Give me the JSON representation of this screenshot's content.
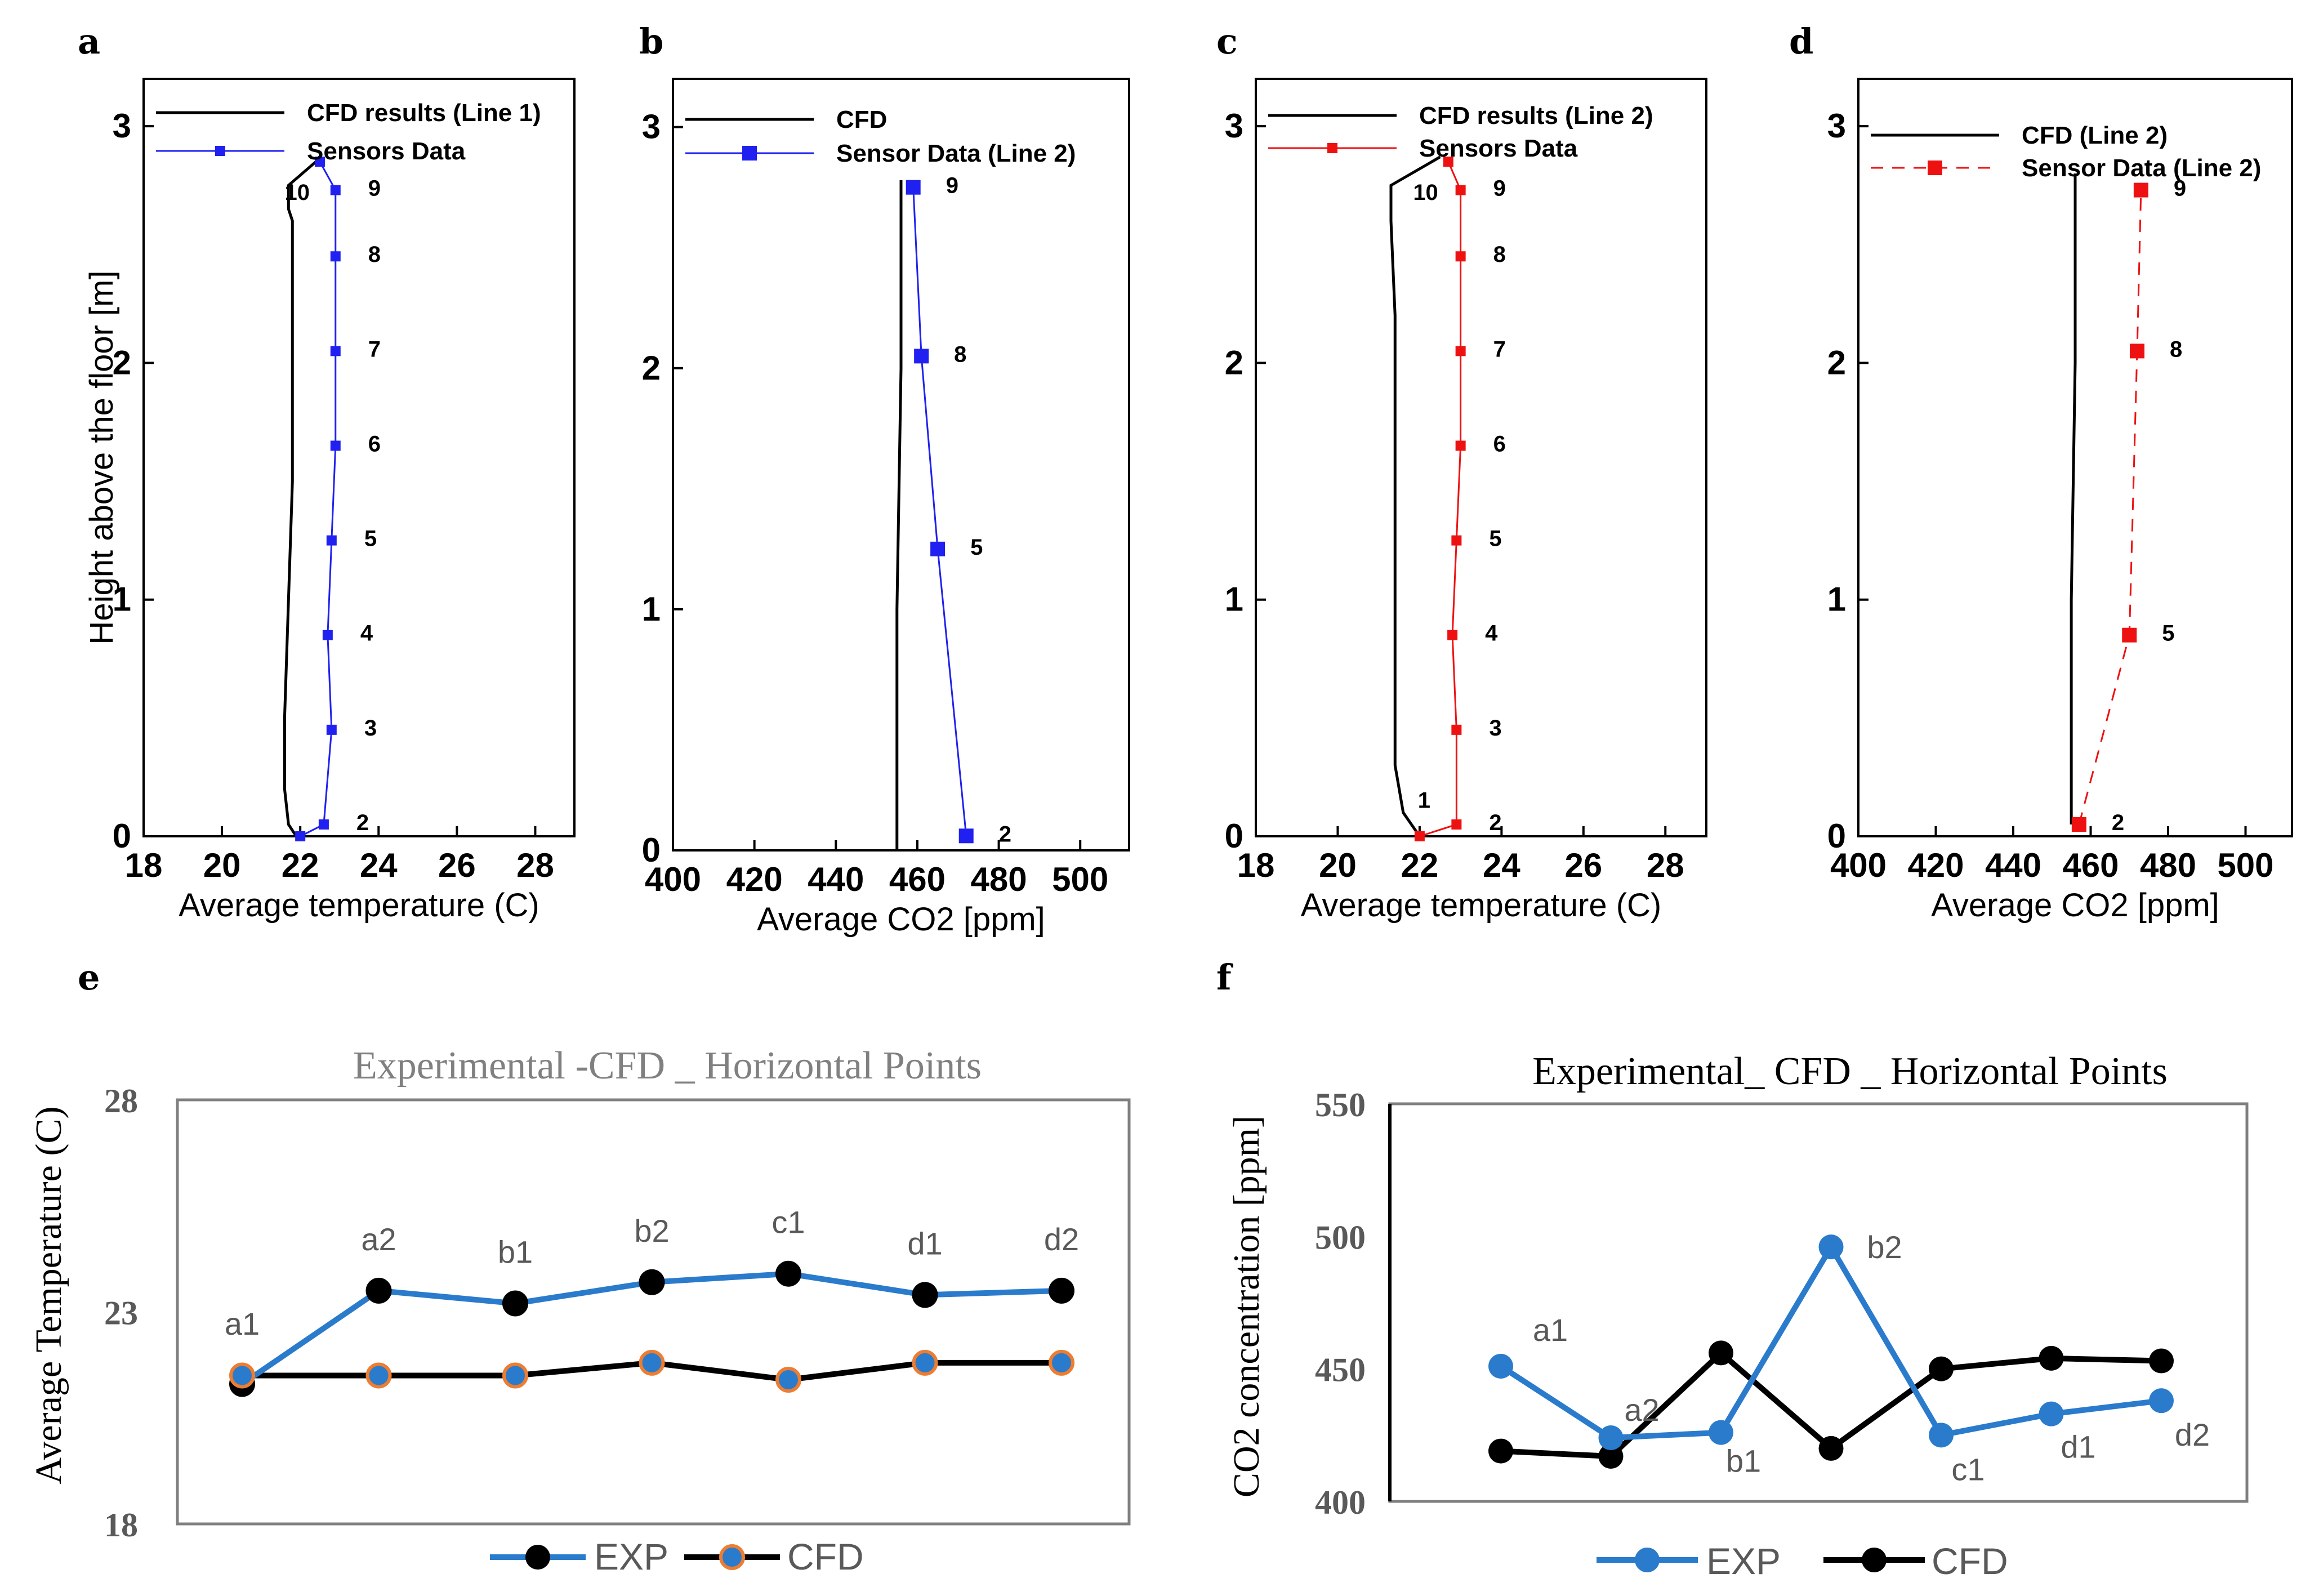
{
  "panels": {
    "a": {
      "letter": "a",
      "xlabel": "Average temperature (C)",
      "ylabel": "Height above the floor [m]",
      "xticks": [
        "18",
        "20",
        "22",
        "24",
        "26",
        "28"
      ],
      "yticks": [
        "0",
        "1",
        "2",
        "3"
      ],
      "legend": [
        "CFD results (Line 1)",
        "Sensors Data"
      ]
    },
    "b": {
      "letter": "b",
      "xlabel": "Average CO2 [ppm]",
      "xticks": [
        "400",
        "420",
        "440",
        "460",
        "480",
        "500"
      ],
      "yticks": [
        "0",
        "1",
        "2",
        "3"
      ],
      "legend": [
        "CFD",
        "Sensor Data (Line 2)"
      ]
    },
    "c": {
      "letter": "c",
      "xlabel": "Average temperature (C)",
      "xticks": [
        "18",
        "20",
        "22",
        "24",
        "26",
        "28"
      ],
      "yticks": [
        "0",
        "1",
        "2",
        "3"
      ],
      "legend": [
        "CFD results (Line 2)",
        "Sensors Data"
      ]
    },
    "d": {
      "letter": "d",
      "xlabel": "Average CO2 [ppm]",
      "xticks": [
        "400",
        "420",
        "440",
        "460",
        "480",
        "500"
      ],
      "yticks": [
        "0",
        "1",
        "2",
        "3"
      ],
      "legend": [
        "CFD (Line 2)",
        "Sensor Data (Line 2)"
      ]
    },
    "e": {
      "letter": "e",
      "title": "Experimental -CFD _ Horizontal Points",
      "ylabel": "Average Temperature (C)",
      "yticks": [
        "18",
        "23",
        "28"
      ],
      "legend": [
        "EXP",
        "CFD"
      ]
    },
    "f": {
      "letter": "f",
      "title": "Experimental_ CFD _ Horizontal Points",
      "ylabel": "CO2 concentration [ppm]",
      "yticks": [
        "400",
        "450",
        "500",
        "550"
      ],
      "legend": [
        "EXP",
        "CFD"
      ]
    }
  },
  "colors": {
    "blue_marker": "#2020f0",
    "red_marker": "#ee1111",
    "excel_blue": "#2a7bcc",
    "excel_orange": "#ed7d31",
    "black": "#000000",
    "frame_gray": "#7f7f7f"
  },
  "chart_data": [
    {
      "id": "a",
      "type": "line",
      "title": "",
      "xlabel": "Average temperature (C)",
      "ylabel": "Height above the floor [m]",
      "xlim": [
        18,
        29
      ],
      "ylim": [
        0,
        3.2
      ],
      "series": [
        {
          "name": "CFD results (Line 1)",
          "x": [
            21.9,
            21.7,
            21.6,
            21.6,
            21.7,
            21.8,
            21.8,
            21.8,
            21.8,
            21.8,
            21.7,
            21.7,
            21.7,
            22.4
          ],
          "y": [
            0.0,
            0.05,
            0.2,
            0.5,
            1.0,
            1.5,
            2.0,
            2.3,
            2.5,
            2.6,
            2.65,
            2.7,
            2.75,
            2.85
          ]
        },
        {
          "name": "Sensors Data",
          "x": [
            22.0,
            22.6,
            22.8,
            22.7,
            22.8,
            22.9,
            22.9,
            22.9,
            22.9,
            22.5
          ],
          "y": [
            0.0,
            0.05,
            0.45,
            0.85,
            1.25,
            1.65,
            2.05,
            2.45,
            2.73,
            2.85
          ],
          "labels": [
            "",
            "2",
            "3",
            "4",
            "5",
            "6",
            "7",
            "8",
            "9",
            "10"
          ]
        }
      ]
    },
    {
      "id": "b",
      "type": "line",
      "title": "",
      "xlabel": "Average CO2 [ppm]",
      "ylabel": "",
      "xlim": [
        400,
        512
      ],
      "ylim": [
        0,
        3.2
      ],
      "series": [
        {
          "name": "CFD",
          "x": [
            455,
            455,
            456,
            456
          ],
          "y": [
            0.0,
            1.0,
            2.0,
            2.78
          ]
        },
        {
          "name": "Sensor Data (Line 2)",
          "x": [
            472,
            465,
            461,
            459
          ],
          "y": [
            0.06,
            1.25,
            2.05,
            2.75
          ],
          "labels": [
            "2",
            "5",
            "8",
            "9"
          ]
        }
      ]
    },
    {
      "id": "c",
      "type": "line",
      "title": "",
      "xlabel": "Average temperature (C)",
      "ylabel": "",
      "xlim": [
        18,
        29
      ],
      "ylim": [
        0,
        3.2
      ],
      "series": [
        {
          "name": "CFD results (Line 2)",
          "x": [
            22.0,
            21.6,
            21.4,
            21.4,
            21.4,
            21.4,
            21.4,
            21.3,
            21.3,
            22.5
          ],
          "y": [
            0.0,
            0.1,
            0.3,
            0.7,
            1.2,
            1.7,
            2.2,
            2.6,
            2.75,
            2.87
          ],
          "labels": [
            "1"
          ]
        },
        {
          "name": "Sensors Data",
          "x": [
            22.0,
            22.9,
            22.9,
            22.8,
            22.9,
            23.0,
            23.0,
            23.0,
            23.0,
            22.7
          ],
          "y": [
            0.0,
            0.05,
            0.45,
            0.85,
            1.25,
            1.65,
            2.05,
            2.45,
            2.73,
            2.85
          ],
          "labels": [
            "",
            "2",
            "3",
            "4",
            "5",
            "6",
            "7",
            "8",
            "9",
            "10"
          ]
        }
      ]
    },
    {
      "id": "d",
      "type": "line",
      "title": "",
      "xlabel": "Average CO2 [ppm]",
      "ylabel": "",
      "xlim": [
        400,
        512
      ],
      "ylim": [
        0,
        3.2
      ],
      "series": [
        {
          "name": "CFD (Line 2)",
          "x": [
            455,
            455,
            456,
            456
          ],
          "y": [
            0.05,
            1.0,
            2.0,
            2.8
          ]
        },
        {
          "name": "Sensor Data (Line 2)",
          "x": [
            457,
            470,
            472,
            473
          ],
          "y": [
            0.05,
            0.85,
            2.05,
            2.73
          ],
          "labels": [
            "2",
            "5",
            "8",
            "9"
          ]
        }
      ]
    },
    {
      "id": "e",
      "type": "line",
      "title": "Experimental -CFD _ Horizontal Points",
      "xlabel": "",
      "ylabel": "Average Temperature (C)",
      "ylim": [
        18,
        28
      ],
      "categories": [
        "a1",
        "a2",
        "b1",
        "b2",
        "c1",
        "d1",
        "d2"
      ],
      "series": [
        {
          "name": "EXP",
          "values": [
            21.3,
            23.5,
            23.2,
            23.7,
            23.9,
            23.4,
            23.5
          ]
        },
        {
          "name": "CFD",
          "values": [
            21.5,
            21.5,
            21.5,
            21.8,
            21.4,
            21.8,
            21.8
          ]
        }
      ]
    },
    {
      "id": "f",
      "type": "line",
      "title": "Experimental_ CFD _ Horizontal Points",
      "xlabel": "",
      "ylabel": "CO2 concentration [ppm]",
      "ylim": [
        400,
        550
      ],
      "categories": [
        "a1",
        "a2",
        "b1",
        "b2",
        "c1",
        "d1",
        "d2"
      ],
      "series": [
        {
          "name": "EXP",
          "values": [
            451,
            424,
            426,
            496,
            425,
            433,
            438
          ]
        },
        {
          "name": "CFD",
          "values": [
            419,
            417,
            456,
            420,
            450,
            454,
            453
          ]
        }
      ]
    }
  ]
}
